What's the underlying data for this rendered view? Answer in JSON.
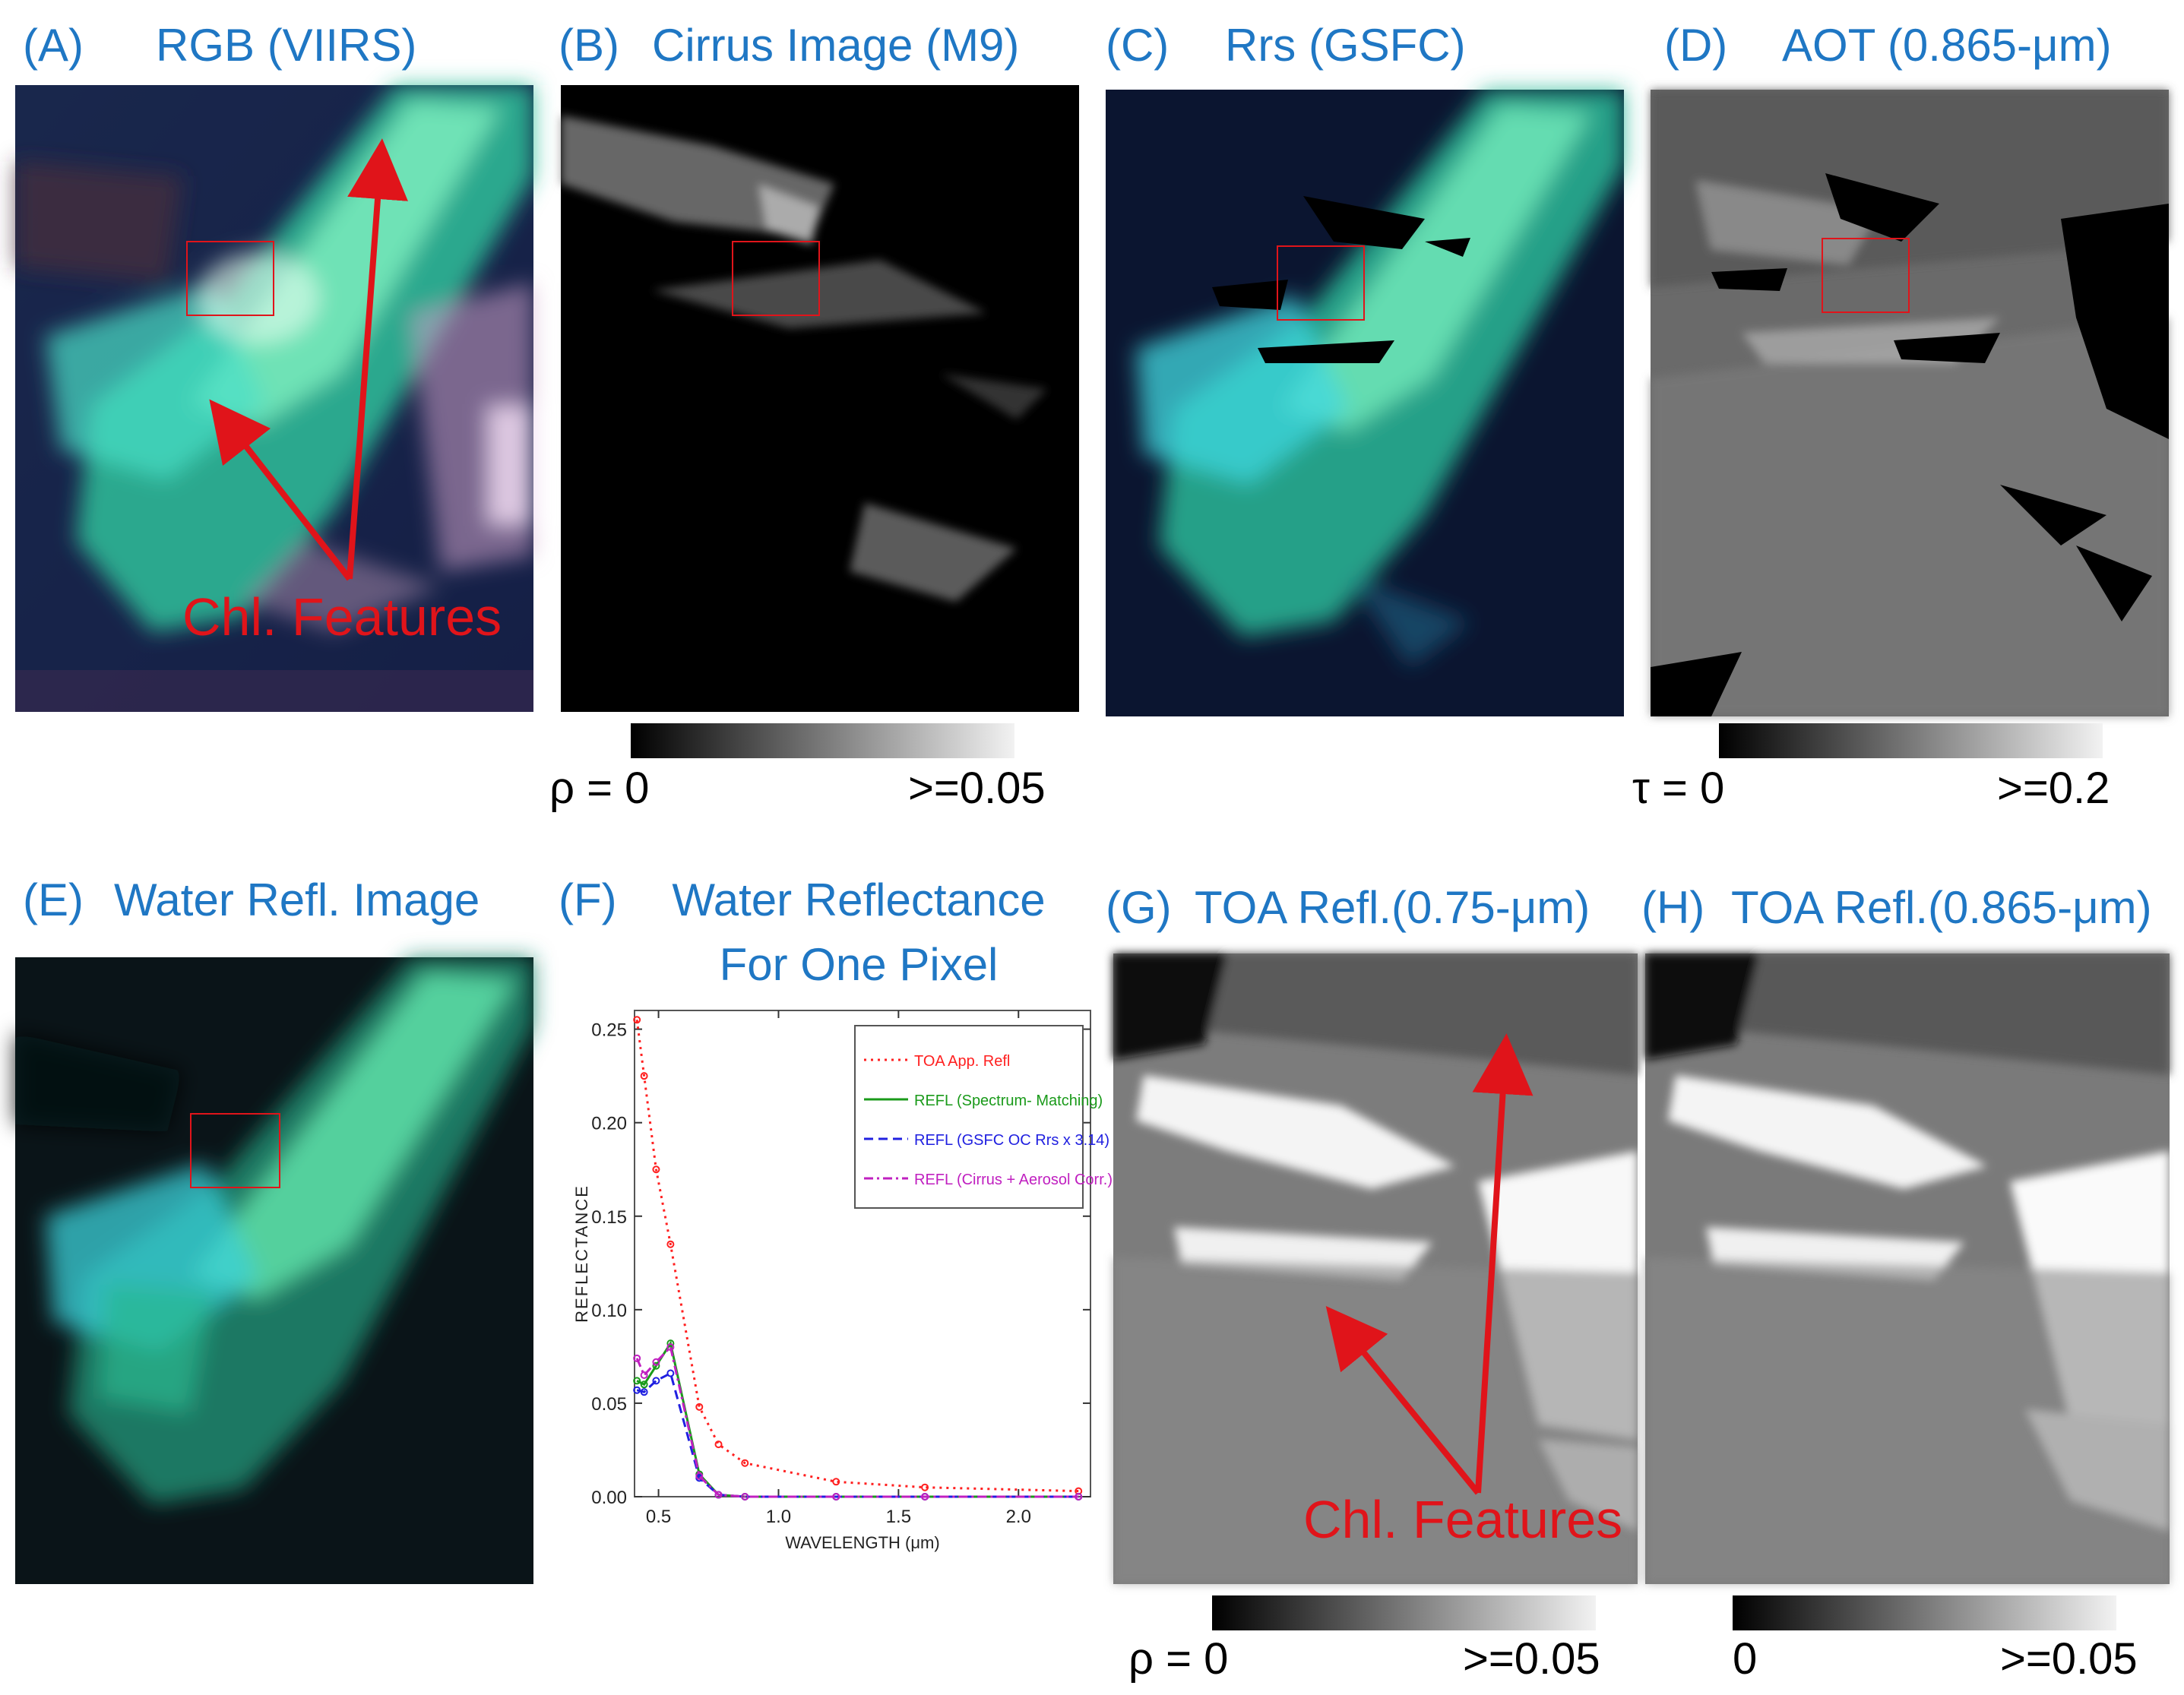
{
  "panels": {
    "A": {
      "letter": "(A)",
      "title": "RGB (VIIRS)"
    },
    "B": {
      "letter": "(B)",
      "title": "Cirrus Image (M9)"
    },
    "C": {
      "letter": "(C)",
      "title": "Rrs (GSFC)"
    },
    "D": {
      "letter": "(D)",
      "title": "AOT (0.865-μm)"
    },
    "E": {
      "letter": "(E)",
      "title": "Water Refl. Image"
    },
    "F": {
      "letter": "(F)",
      "title_line1": "Water Reflectance",
      "title_line2": "For One Pixel"
    },
    "G": {
      "letter": "(G)",
      "title": "TOA Refl.(0.75-μm)"
    },
    "H": {
      "letter": "(H)",
      "title": "TOA Refl.(0.865-μm)"
    }
  },
  "annotations": {
    "chl_features_A": "Chl. Features",
    "chl_features_G": "Chl. Features"
  },
  "colorbars": {
    "B": {
      "min": "ρ = 0",
      "max": ">=0.05"
    },
    "D": {
      "min": "τ = 0",
      "max": ">=0.2"
    },
    "G": {
      "min": "ρ = 0",
      "max": ">=0.05"
    },
    "H": {
      "min": "0",
      "max": ">=0.05"
    }
  },
  "colors": {
    "label_blue": "#1f77c4",
    "arrow_red": "#e0141a"
  },
  "chart_data": {
    "type": "line",
    "title": "",
    "xlabel": "WAVELENGTH (μm)",
    "ylabel": "REFLECTANCE",
    "xlim": [
      0.4,
      2.3
    ],
    "ylim": [
      0.0,
      0.26
    ],
    "xticks": [
      "0.5",
      "1.0",
      "1.5",
      "2.0"
    ],
    "xtick_values": [
      0.5,
      1.0,
      1.5,
      2.0
    ],
    "yticks": [
      "0.00",
      "0.05",
      "0.10",
      "0.15",
      "0.20",
      "0.25"
    ],
    "ytick_values": [
      0.0,
      0.05,
      0.1,
      0.15,
      0.2,
      0.25
    ],
    "legend_position": "top-right",
    "series": [
      {
        "name": "TOA App. Refl",
        "color": "#ff2020",
        "dash": "dotted",
        "x": [
          0.41,
          0.44,
          0.49,
          0.55,
          0.67,
          0.75,
          0.86,
          1.24,
          1.61,
          2.25
        ],
        "y": [
          0.255,
          0.225,
          0.175,
          0.135,
          0.048,
          0.028,
          0.018,
          0.008,
          0.005,
          0.003
        ]
      },
      {
        "name": "REFL (Spectrum- Matching)",
        "color": "#1a9a1a",
        "dash": "solid",
        "x": [
          0.41,
          0.44,
          0.49,
          0.55,
          0.67,
          0.75,
          0.86,
          1.24,
          1.61,
          2.25
        ],
        "y": [
          0.062,
          0.06,
          0.07,
          0.082,
          0.012,
          0.001,
          0.0,
          0.0,
          0.0,
          0.0
        ]
      },
      {
        "name": "REFL (GSFC OC Rrs x 3.14)",
        "color": "#2020e0",
        "dash": "dashed",
        "x": [
          0.41,
          0.44,
          0.49,
          0.55,
          0.67,
          0.75,
          0.86,
          1.24,
          1.61,
          2.25
        ],
        "y": [
          0.057,
          0.056,
          0.062,
          0.066,
          0.01,
          0.001,
          0.0,
          0.0,
          0.0,
          0.0
        ]
      },
      {
        "name": "REFL (Cirrus + Aerosol Corr.)",
        "color": "#c020c0",
        "dash": "dashdot",
        "x": [
          0.41,
          0.44,
          0.49,
          0.55,
          0.67,
          0.75,
          0.86,
          1.24,
          1.61,
          2.25
        ],
        "y": [
          0.074,
          0.065,
          0.072,
          0.08,
          0.011,
          0.001,
          0.0,
          0.0,
          0.0,
          0.0
        ]
      }
    ]
  }
}
